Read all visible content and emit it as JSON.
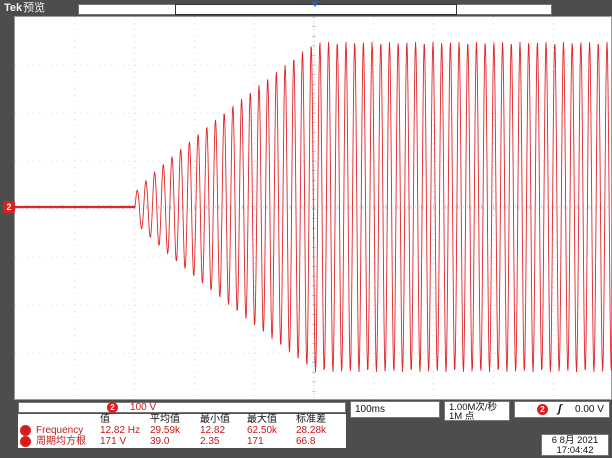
{
  "header": {
    "brand": "Tek",
    "mode": "预览"
  },
  "display": {
    "channel_marker": "2"
  },
  "channel_readout": {
    "badge": "2",
    "scale": "100 V"
  },
  "measurements": {
    "columns": [
      "值",
      "平均值",
      "最小值",
      "最大值",
      "标准差"
    ],
    "rows": [
      {
        "badge": "2",
        "name": "Frequency",
        "values": [
          "12.82 Hz",
          "29.59k",
          "12.82",
          "62.50k",
          "28.28k"
        ]
      },
      {
        "badge": "2",
        "name": "周期均方根",
        "values": [
          "171 V",
          "39.0",
          "2.35",
          "171",
          "66.8"
        ]
      }
    ]
  },
  "timebase": {
    "scale": "100ms"
  },
  "acquisition": {
    "rate": "1.00M次/秒",
    "points": "1M 点"
  },
  "trigger": {
    "badge": "2",
    "slope_symbol": "ʃ",
    "level": "0.00 V"
  },
  "clock": {
    "date": "6 8月  2021",
    "time": "17:04:42"
  },
  "colors": {
    "trace": "#e0262b",
    "badge": "#d91f1f",
    "grid": "#b8b8b8",
    "trigger_marker": "#1e63b8"
  }
}
